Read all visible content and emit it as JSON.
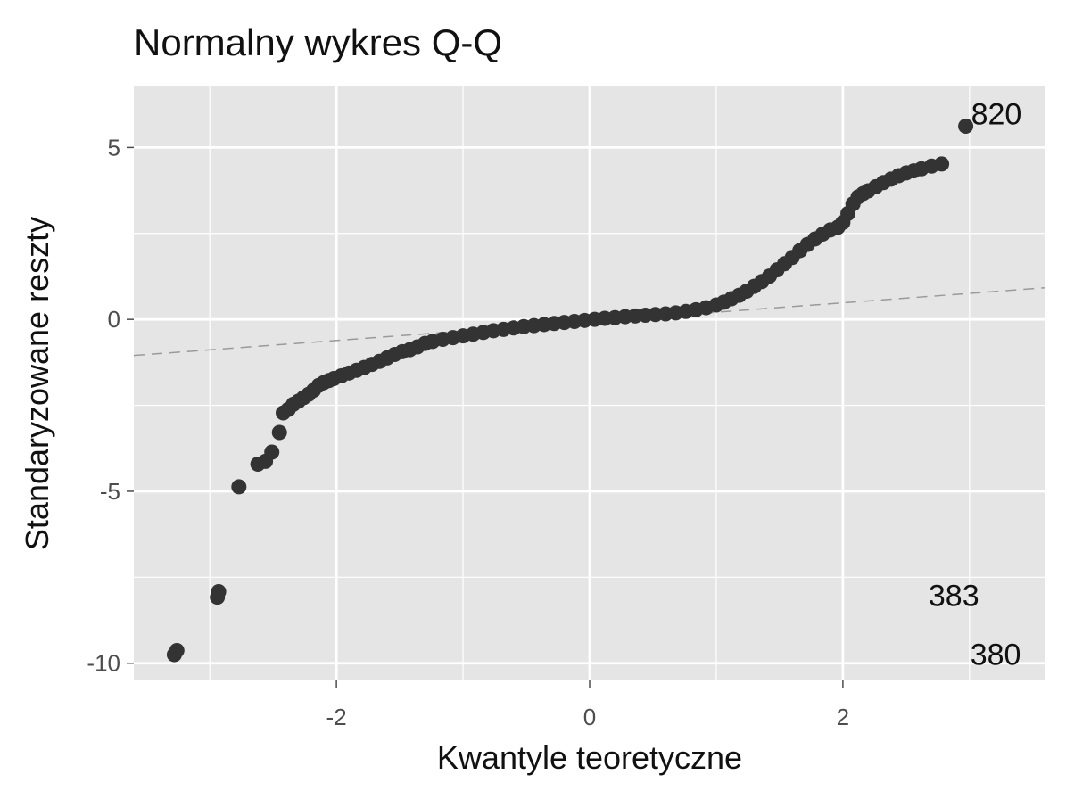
{
  "chart_data": {
    "type": "scatter",
    "title": "Normalny wykres Q-Q",
    "xlabel": "Kwantyle teoretyczne",
    "ylabel": "Standaryzowane reszty",
    "xlim": [
      -3.6,
      3.6
    ],
    "ylim": [
      -10.5,
      6.8
    ],
    "grid": true,
    "x_ticks": [
      {
        "value": -2,
        "label": "-2"
      },
      {
        "value": 0,
        "label": "0"
      },
      {
        "value": 2,
        "label": "2"
      }
    ],
    "y_ticks": [
      {
        "value": -10,
        "label": "-10"
      },
      {
        "value": -5,
        "label": "-5"
      },
      {
        "value": 0,
        "label": "0"
      },
      {
        "value": 5,
        "label": "5"
      }
    ],
    "reference_line": {
      "x": [
        -3.6,
        3.6
      ],
      "y": [
        -1.05,
        0.92
      ]
    },
    "colors": {
      "panel": "#e5e5e5",
      "grid": "#ffffff",
      "points": "#333333",
      "reference_line": "#9a9a9a",
      "text": "#111111",
      "tick_text": "#4d4d4d"
    },
    "series": [
      {
        "points": [
          [
            -3.28,
            -9.75
          ],
          [
            -3.26,
            -9.63
          ],
          [
            -2.94,
            -8.08
          ],
          [
            -2.93,
            -7.92
          ],
          [
            -2.77,
            -4.87
          ],
          [
            -2.62,
            -4.21
          ],
          [
            -2.56,
            -4.13
          ],
          [
            -2.51,
            -3.86
          ],
          [
            -2.45,
            -3.29
          ],
          [
            -2.42,
            -2.72
          ],
          [
            -2.38,
            -2.62
          ],
          [
            -2.34,
            -2.47
          ],
          [
            -2.3,
            -2.38
          ],
          [
            -2.26,
            -2.28
          ],
          [
            -2.22,
            -2.18
          ],
          [
            -2.18,
            -2.06
          ],
          [
            -2.14,
            -1.92
          ],
          [
            -2.1,
            -1.84
          ],
          [
            -2.06,
            -1.78
          ],
          [
            -2.02,
            -1.72
          ],
          [
            -1.96,
            -1.64
          ],
          [
            -1.9,
            -1.56
          ],
          [
            -1.84,
            -1.48
          ],
          [
            -1.78,
            -1.4
          ],
          [
            -1.72,
            -1.31
          ],
          [
            -1.66,
            -1.22
          ],
          [
            -1.6,
            -1.12
          ],
          [
            -1.54,
            -1.02
          ],
          [
            -1.48,
            -0.94
          ],
          [
            -1.42,
            -0.88
          ],
          [
            -1.36,
            -0.8
          ],
          [
            -1.3,
            -0.7
          ],
          [
            -1.24,
            -0.64
          ],
          [
            -1.16,
            -0.58
          ],
          [
            -1.08,
            -0.53
          ],
          [
            -1.0,
            -0.48
          ],
          [
            -0.92,
            -0.43
          ],
          [
            -0.84,
            -0.38
          ],
          [
            -0.76,
            -0.33
          ],
          [
            -0.68,
            -0.29
          ],
          [
            -0.6,
            -0.25
          ],
          [
            -0.52,
            -0.21
          ],
          [
            -0.44,
            -0.18
          ],
          [
            -0.36,
            -0.15
          ],
          [
            -0.28,
            -0.12
          ],
          [
            -0.2,
            -0.09
          ],
          [
            -0.12,
            -0.06
          ],
          [
            -0.04,
            -0.03
          ],
          [
            0.04,
            0.0
          ],
          [
            0.12,
            0.03
          ],
          [
            0.2,
            0.05
          ],
          [
            0.28,
            0.08
          ],
          [
            0.36,
            0.1
          ],
          [
            0.44,
            0.12
          ],
          [
            0.52,
            0.14
          ],
          [
            0.6,
            0.16
          ],
          [
            0.68,
            0.19
          ],
          [
            0.76,
            0.23
          ],
          [
            0.84,
            0.28
          ],
          [
            0.92,
            0.34
          ],
          [
            1.0,
            0.42
          ],
          [
            1.06,
            0.5
          ],
          [
            1.12,
            0.6
          ],
          [
            1.18,
            0.7
          ],
          [
            1.24,
            0.82
          ],
          [
            1.3,
            0.96
          ],
          [
            1.36,
            1.1
          ],
          [
            1.42,
            1.26
          ],
          [
            1.48,
            1.44
          ],
          [
            1.54,
            1.62
          ],
          [
            1.6,
            1.8
          ],
          [
            1.66,
            2.0
          ],
          [
            1.72,
            2.18
          ],
          [
            1.78,
            2.34
          ],
          [
            1.84,
            2.48
          ],
          [
            1.9,
            2.6
          ],
          [
            1.96,
            2.68
          ],
          [
            2.0,
            2.82
          ],
          [
            2.04,
            3.08
          ],
          [
            2.08,
            3.36
          ],
          [
            2.12,
            3.56
          ],
          [
            2.16,
            3.66
          ],
          [
            2.2,
            3.74
          ],
          [
            2.26,
            3.86
          ],
          [
            2.32,
            3.98
          ],
          [
            2.38,
            4.08
          ],
          [
            2.44,
            4.18
          ],
          [
            2.5,
            4.26
          ],
          [
            2.56,
            4.32
          ],
          [
            2.62,
            4.38
          ],
          [
            2.7,
            4.46
          ],
          [
            2.78,
            4.52
          ],
          [
            2.97,
            5.62
          ]
        ]
      }
    ],
    "annotations": [
      {
        "label": "820",
        "x": 2.97,
        "y": 5.62,
        "placement": "right-top"
      },
      {
        "label": "383",
        "x": 2.93,
        "y": -7.92,
        "placement": "left-top"
      },
      {
        "label": "380",
        "x": 3.26,
        "y": -9.63,
        "placement": "left-top"
      }
    ]
  }
}
